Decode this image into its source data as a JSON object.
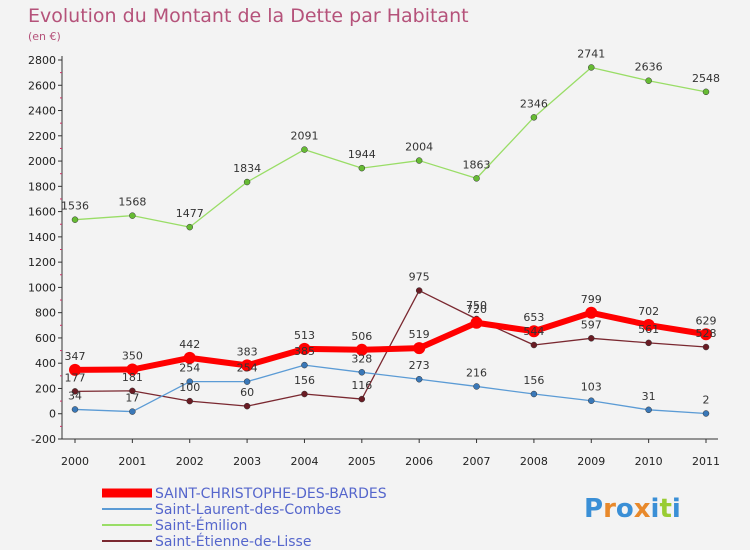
{
  "chart_data": {
    "type": "line",
    "title": "Evolution du Montant de la Dette par Habitant",
    "subtitle": "(en €)",
    "x": [
      "2000",
      "2001",
      "2002",
      "2003",
      "2004",
      "2005",
      "2006",
      "2007",
      "2008",
      "2009",
      "2010",
      "2011"
    ],
    "ylim": [
      -200,
      2800
    ],
    "yticks": [
      -200,
      0,
      200,
      400,
      600,
      800,
      1000,
      1200,
      1400,
      1600,
      1800,
      2000,
      2200,
      2400,
      2600,
      2800
    ],
    "grid": false,
    "legend_position": "bottom-left",
    "series": [
      {
        "name": "SAINT-CHRISTOPHE-DES-BARDES",
        "color": "#ff0000",
        "values": [
          347,
          350,
          442,
          383,
          513,
          506,
          519,
          720,
          653,
          799,
          702,
          629
        ]
      },
      {
        "name": "Saint-Laurent-des-Combes",
        "color": "#5b9bd5",
        "values": [
          34,
          17,
          254,
          254,
          385,
          328,
          273,
          216,
          156,
          103,
          31,
          2
        ]
      },
      {
        "name": "Saint-Émilion",
        "color": "#99dd66",
        "values": [
          1536,
          1568,
          1477,
          1834,
          2091,
          1944,
          2004,
          1863,
          2346,
          2741,
          2636,
          2548
        ]
      },
      {
        "name": "Saint-Étienne-de-Lisse",
        "color": "#7a2830",
        "values": [
          177,
          181,
          100,
          60,
          156,
          116,
          975,
          750,
          544,
          597,
          561,
          528
        ]
      }
    ]
  },
  "logo": {
    "text": "Proxiti"
  }
}
